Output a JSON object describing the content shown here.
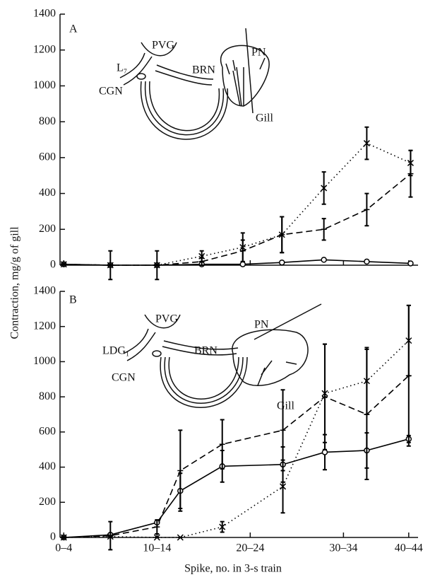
{
  "chart_data": [
    {
      "type": "line",
      "ylabel": "Contraction, mg/g of gill",
      "annotations": [
        "A",
        "PVG",
        "L₇",
        "BRN",
        "CGN",
        "PN",
        "Gill"
      ],
      "x": [
        2,
        7,
        12,
        16.8,
        21.2,
        25.4,
        29.9,
        34.5,
        39.2
      ],
      "xlim": [
        1.6,
        40
      ],
      "xticks": [
        2,
        12,
        22,
        32,
        39
      ],
      "ylim": [
        0,
        1400
      ],
      "yticks": [
        0,
        200,
        400,
        600,
        800,
        1000,
        1200,
        1400
      ],
      "series": [
        {
          "color": "#000000",
          "linestyle": "solid",
          "marker": "circle",
          "values": [
            5,
            0,
            0,
            5,
            5,
            15,
            30,
            20,
            10
          ],
          "errors": [
            0,
            80,
            80,
            0,
            0,
            0,
            0,
            0,
            0
          ]
        },
        {
          "color": "#000000",
          "linestyle": "dashed",
          "marker": "plus",
          "values": [
            5,
            0,
            0,
            20,
            80,
            170,
            200,
            310,
            510
          ],
          "errors": [
            0,
            0,
            0,
            20,
            60,
            100,
            60,
            90,
            130
          ]
        },
        {
          "color": "#000000",
          "linestyle": "dotted",
          "marker": "x",
          "values": [
            5,
            0,
            0,
            50,
            100,
            170,
            430,
            680,
            570
          ],
          "errors": [
            0,
            0,
            0,
            30,
            80,
            100,
            90,
            90,
            70
          ]
        }
      ]
    },
    {
      "type": "line",
      "xlabel": "Spike, no. in 3-s train",
      "annotations": [
        "B",
        "PVG",
        "PN",
        "LDG₁",
        "BRN",
        "CGN",
        "Gill"
      ],
      "x": [
        2,
        7,
        12,
        14.5,
        19,
        25.5,
        30,
        34.5,
        39
      ],
      "xlim": [
        1.6,
        40
      ],
      "xticks": [
        {
          "value": 2,
          "label": "0–4"
        },
        {
          "value": 12,
          "label": "10–14"
        },
        {
          "value": 22,
          "label": "20–24"
        },
        {
          "value": 32,
          "label": "30–34"
        },
        {
          "value": 39,
          "label": "40–44"
        }
      ],
      "ylim": [
        0,
        1400
      ],
      "yticks": [
        0,
        200,
        400,
        600,
        800,
        1000,
        1200,
        1400
      ],
      "series": [
        {
          "color": "#000000",
          "linestyle": "solid",
          "marker": "circle",
          "values": [
            0,
            15,
            85,
            265,
            405,
            415,
            485,
            495,
            560
          ],
          "errors": [
            0,
            0,
            0,
            100,
            90,
            100,
            100,
            100,
            20
          ]
        },
        {
          "color": "#000000",
          "linestyle": "dashed",
          "marker": "plus",
          "values": [
            0,
            10,
            60,
            380,
            530,
            610,
            800,
            700,
            920
          ],
          "errors": [
            0,
            80,
            40,
            230,
            140,
            230,
            300,
            370,
            400
          ]
        },
        {
          "color": "#000000",
          "linestyle": "dotted",
          "marker": "x",
          "values": [
            0,
            5,
            0,
            0,
            60,
            290,
            820,
            890,
            1120
          ],
          "errors": [
            0,
            0,
            0,
            0,
            30,
            150,
            280,
            190,
            200
          ]
        }
      ]
    }
  ]
}
